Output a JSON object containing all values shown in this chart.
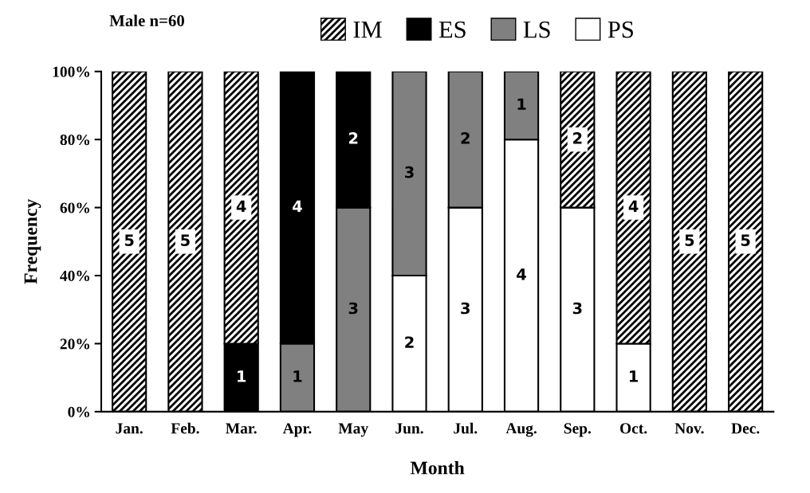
{
  "chart_data": {
    "type": "bar",
    "stacked": true,
    "title": "Male n=60",
    "xlabel": "Month",
    "ylabel": "Frequency",
    "categories": [
      "Jan.",
      "Feb.",
      "Mar.",
      "Apr.",
      "May",
      "Jun.",
      "Jul.",
      "Aug.",
      "Sep.",
      "Oct.",
      "Nov.",
      "Dec."
    ],
    "series": [
      {
        "name": "PS",
        "color": "#ffffff",
        "values": [
          null,
          null,
          null,
          null,
          null,
          40,
          60,
          80,
          60,
          20,
          null,
          null
        ]
      },
      {
        "name": "LS",
        "color": "#808080",
        "values": [
          null,
          null,
          null,
          20,
          60,
          60,
          40,
          20,
          null,
          null,
          null,
          null
        ]
      },
      {
        "name": "ES",
        "color": "#000000",
        "values": [
          null,
          null,
          20,
          80,
          40,
          null,
          null,
          null,
          null,
          null,
          null,
          null
        ]
      },
      {
        "name": "IM",
        "color": "#000000",
        "values": [
          100,
          100,
          80,
          null,
          null,
          null,
          null,
          null,
          40,
          80,
          100,
          100
        ]
      }
    ],
    "annotations": [
      "5",
      "5",
      "1",
      "4",
      "1",
      "4",
      "3",
      "2",
      "2",
      "3",
      "3",
      "2",
      "4",
      "1",
      "3",
      "2",
      "1",
      "4",
      "5",
      "5"
    ],
    "ylim": [
      0,
      100
    ],
    "yticks": [
      {
        "value": 0,
        "label": "0%"
      },
      {
        "value": 20,
        "label": "20%"
      },
      {
        "value": 40,
        "label": "40%"
      },
      {
        "value": 60,
        "label": "60%"
      },
      {
        "value": 80,
        "label": "80%"
      },
      {
        "value": 100,
        "label": "100%"
      }
    ],
    "grid": false,
    "legend": "top"
  }
}
